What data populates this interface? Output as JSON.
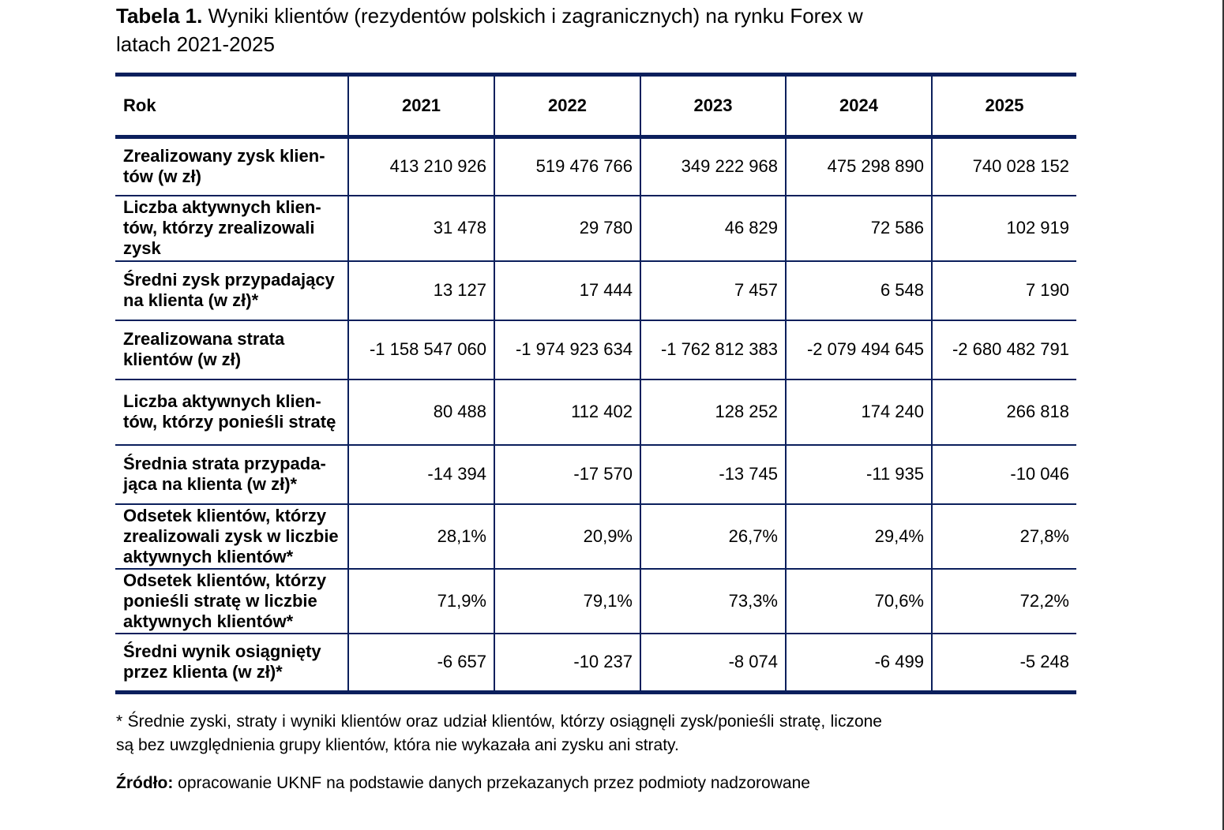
{
  "title": {
    "label": "Tabela 1.",
    "text": "Wyniki klientów (rezydentów polskich i zagranicznych) na rynku Forex w latach 2021-2025"
  },
  "table": {
    "header": [
      "Rok",
      "2021",
      "2022",
      "2023",
      "2024",
      "2025"
    ],
    "rows": [
      {
        "label": "Zrealizowany zysk klien­tów (w zł)",
        "values": [
          "413 210 926",
          "519 476 766",
          "349 222 968",
          "475 298 890",
          "740 028 152"
        ]
      },
      {
        "label": "Liczba aktywnych klien­tów, którzy zrealizowali zysk",
        "values": [
          "31 478",
          "29 780",
          "46 829",
          "72 586",
          "102 919"
        ]
      },
      {
        "label": "Średni zysk przypada­jący na klienta (w zł)*",
        "values": [
          "13 127",
          "17 444",
          "7 457",
          "6 548",
          "7 190"
        ]
      },
      {
        "label": "Zrealizowana strata klientów (w zł)",
        "values": [
          "-1 158 547 060",
          "-1 974 923 634",
          "-1 762 812 383",
          "-2 079 494 645",
          "-2 680 482 791"
        ]
      },
      {
        "label": "Liczba aktywnych klien­tów, którzy ponieśli stratę",
        "values": [
          "80 488",
          "112 402",
          "128 252",
          "174 240",
          "266 818"
        ]
      },
      {
        "label": "Średnia strata przypada­jąca na klienta (w zł)*",
        "values": [
          "-14 394",
          "-17 570",
          "-13 745",
          "-11 935",
          "-10 046"
        ]
      },
      {
        "label": "Odsetek klientów, którzy zrealizowali zysk w licz­bie aktywnych klientów*",
        "values": [
          "28,1%",
          "20,9%",
          "26,7%",
          "29,4%",
          "27,8%"
        ]
      },
      {
        "label": "Odsetek klientów, którzy ponieśli stratę w liczbie aktywnych klientów*",
        "values": [
          "71,9%",
          "79,1%",
          "73,3%",
          "70,6%",
          "72,2%"
        ]
      },
      {
        "label": "Średni wynik osiągnięty przez klienta (w zł)*",
        "values": [
          "-6 657",
          "-10 237",
          "-8 074",
          "-6 499",
          "-5 248"
        ]
      }
    ]
  },
  "footnote": "* Średnie zyski, straty i wyniki klientów oraz udział klientów, którzy osiągnęli zysk/ponieśli stratę, liczone są bez uwzględnienia grupy klientów, która nie wykazała ani zysku ani straty.",
  "source": {
    "label": "Źródło:",
    "text": "opracowanie UKNF na podstawie danych przekazanych przez podmioty nadzoro­wane"
  },
  "colors": {
    "rule": "#0b1f5c"
  }
}
